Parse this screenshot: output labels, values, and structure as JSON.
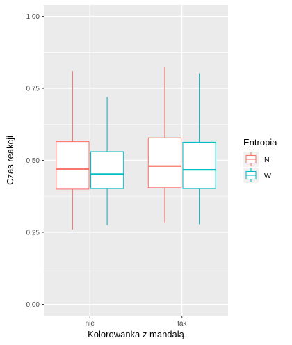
{
  "chart_data": {
    "type": "boxplot",
    "xlabel": "Kolorowanka z mandalą",
    "ylabel": "Czas reakcji",
    "ylim": [
      -0.04,
      1.04
    ],
    "yticks": [
      0.0,
      0.25,
      0.5,
      0.75,
      1.0
    ],
    "ytick_labels": [
      "0.00",
      "0.25",
      "0.50",
      "0.75",
      "1.00"
    ],
    "categories": [
      "nie",
      "tak"
    ],
    "legend": {
      "title": "Entropia",
      "position": "right",
      "entries": [
        "N",
        "W"
      ]
    },
    "grid": true,
    "series": [
      {
        "name": "N",
        "color": "#F8766D",
        "boxes": [
          {
            "category": "nie",
            "min": 0.26,
            "q1": 0.4,
            "median": 0.47,
            "q3": 0.565,
            "max": 0.81
          },
          {
            "category": "tak",
            "min": 0.285,
            "q1": 0.405,
            "median": 0.48,
            "q3": 0.578,
            "max": 0.825
          }
        ]
      },
      {
        "name": "W",
        "color": "#00BFC4",
        "boxes": [
          {
            "category": "nie",
            "min": 0.275,
            "q1": 0.402,
            "median": 0.452,
            "q3": 0.53,
            "max": 0.72
          },
          {
            "category": "tak",
            "min": 0.278,
            "q1": 0.402,
            "median": 0.467,
            "q3": 0.563,
            "max": 0.802
          }
        ]
      }
    ]
  }
}
